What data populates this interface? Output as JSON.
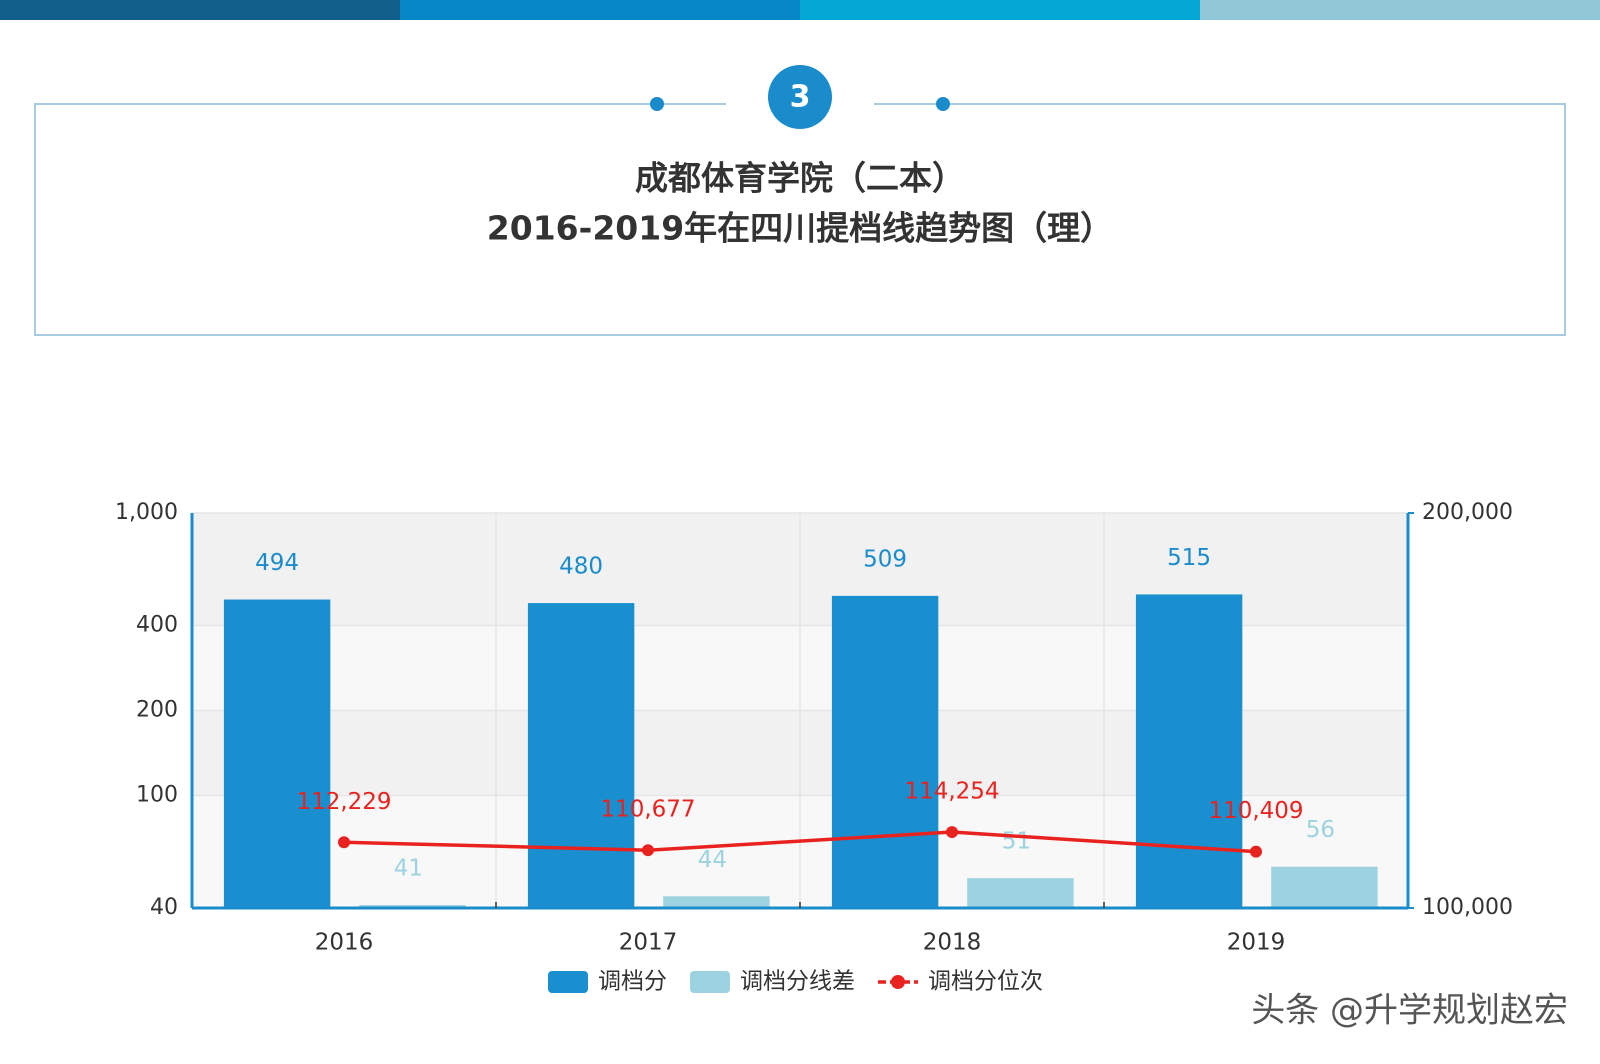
{
  "header": {
    "badge": "3",
    "title_line1": "成都体育学院（二本）",
    "title_line2": "2016-2019年在四川提档线趋势图（理）"
  },
  "chart_data": {
    "type": "bar",
    "categories": [
      "2016",
      "2017",
      "2018",
      "2019"
    ],
    "series": [
      {
        "name": "调档分",
        "color": "#1a8fcf",
        "values": [
          494,
          480,
          509,
          515
        ]
      },
      {
        "name": "调档分线差",
        "color": "#9dd3e0",
        "values": [
          41,
          44,
          51,
          56
        ]
      },
      {
        "name": "调档分位次",
        "color": "#e8231f",
        "type": "line",
        "axis": "y2",
        "values": [
          112229,
          110677,
          114254,
          110409
        ],
        "value_labels": [
          "112,229",
          "110,677",
          "114,254",
          "110,409"
        ]
      }
    ],
    "yscale": "log",
    "ylim": [
      40,
      1000
    ],
    "yticks": [
      40,
      100,
      200,
      400,
      {
        "value": 1000,
        "label": "1,000"
      }
    ],
    "y2scale": "log",
    "y2lim": [
      100000,
      200000
    ],
    "y2ticks": [
      {
        "value": 100000,
        "label": "100,000"
      },
      {
        "value": 200000,
        "label": "200,000"
      }
    ],
    "grid": true,
    "legend": "bottom"
  },
  "watermark": "头条 @升学规划赵宏"
}
